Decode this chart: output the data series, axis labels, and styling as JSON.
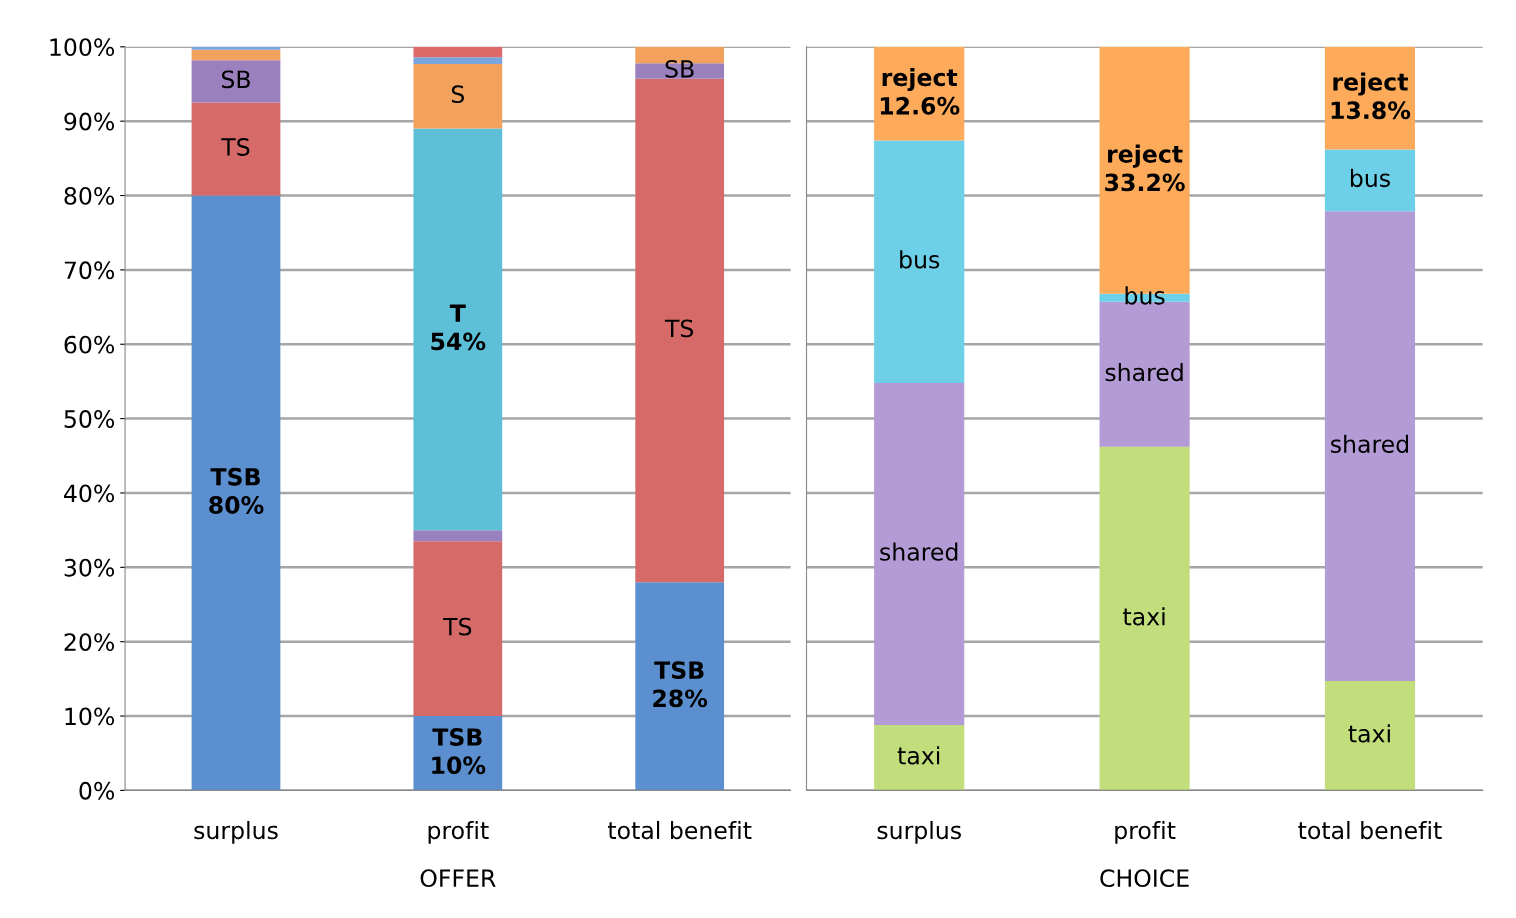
{
  "chart_data": [
    {
      "type": "bar",
      "stacked": true,
      "xlabel": "OFFER",
      "categories": [
        "surplus",
        "profit",
        "total benefit"
      ],
      "ylim": [
        0,
        100
      ],
      "yticks": [
        {
          "value": 0,
          "label": "0%"
        },
        {
          "value": 10,
          "label": "10%"
        },
        {
          "value": 20,
          "label": "20%"
        },
        {
          "value": 30,
          "label": "30%"
        },
        {
          "value": 40,
          "label": "40%"
        },
        {
          "value": 50,
          "label": "50%"
        },
        {
          "value": 60,
          "label": "60%"
        },
        {
          "value": 70,
          "label": "70%"
        },
        {
          "value": 80,
          "label": "80%"
        },
        {
          "value": 90,
          "label": "90%"
        },
        {
          "value": 100,
          "label": "100%"
        }
      ],
      "grid": "y",
      "legend": false,
      "series": [
        {
          "color": "#5b8fcf",
          "values": [
            80,
            10,
            28
          ],
          "value_labels": [
            "TSB\n80%",
            "TSB\n10%",
            "TSB\n28%"
          ]
        },
        {
          "color": "#d66a68",
          "values": [
            12.5,
            23.5,
            67.7
          ],
          "value_labels": [
            "TS",
            "TS",
            "TS"
          ]
        },
        {
          "color": "#9a80bd",
          "values": [
            5.7,
            1.5,
            2.1
          ],
          "value_labels": [
            "SB",
            null,
            "SB"
          ]
        },
        {
          "color": "#5ec0d8",
          "values": [
            0,
            54,
            0
          ],
          "value_labels": [
            null,
            "T\n54%",
            null
          ]
        },
        {
          "color": "#f2a25c",
          "values": [
            1.4,
            8.7,
            2.2
          ],
          "value_labels": [
            null,
            "S",
            null
          ]
        },
        {
          "color": "#7aa6e0",
          "values": [
            0.4,
            0.9,
            0
          ],
          "value_labels": [
            null,
            null,
            null
          ]
        },
        {
          "color": "#e06a6a",
          "values": [
            0,
            1.4,
            0
          ],
          "value_labels": [
            null,
            null,
            null
          ]
        }
      ]
    },
    {
      "type": "bar",
      "stacked": true,
      "xlabel": "CHOICE",
      "categories": [
        "surplus",
        "profit",
        "total benefit"
      ],
      "ylim": [
        0,
        100
      ],
      "tick_labels": "x",
      "grid": "y",
      "legend": false,
      "series": [
        {
          "color": "#c2de7c",
          "values": [
            8.8,
            46.2,
            14.7
          ],
          "value_labels": [
            "taxi",
            "taxi",
            "taxi"
          ]
        },
        {
          "color": "#b39bd6",
          "values": [
            46,
            19.5,
            63.2
          ],
          "value_labels": [
            "shared",
            "shared",
            "shared"
          ]
        },
        {
          "color": "#6dd0e8",
          "values": [
            32.6,
            1.1,
            8.3
          ],
          "value_labels": [
            "bus",
            "bus",
            "bus"
          ]
        },
        {
          "color": "#fdab5a",
          "values": [
            12.6,
            33.2,
            13.8
          ],
          "value_labels": [
            "reject\n12.6%",
            "reject\n33.2%",
            "reject\n13.8%"
          ]
        }
      ]
    }
  ]
}
